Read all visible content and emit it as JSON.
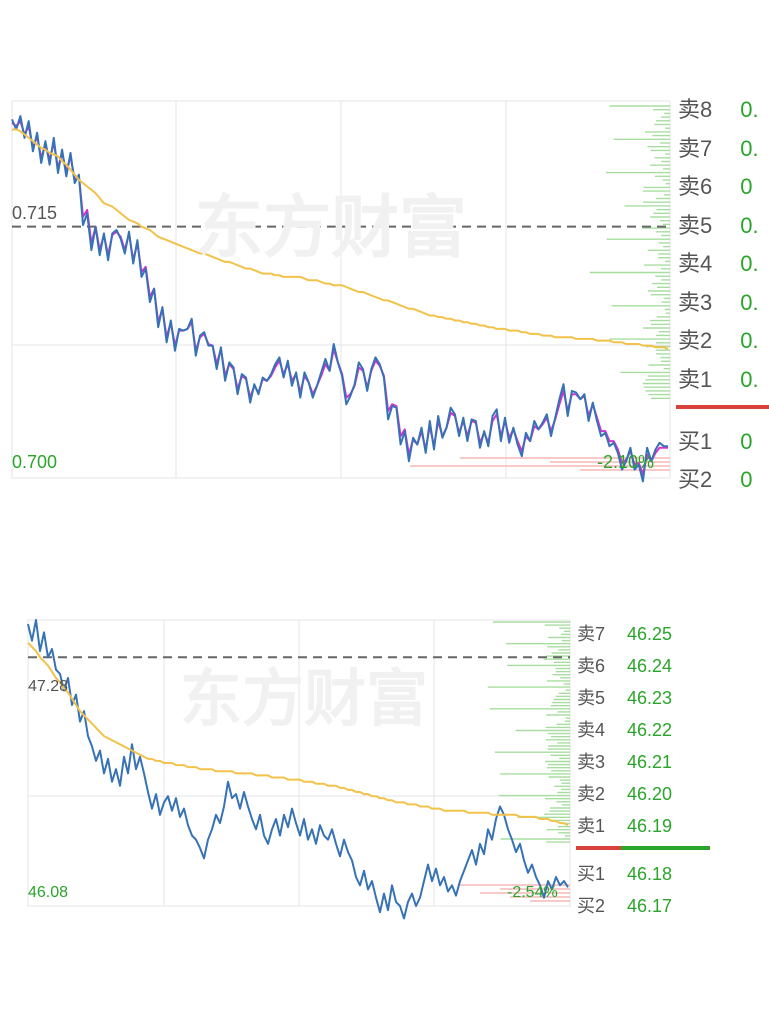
{
  "watermark": "东方财富",
  "colors": {
    "price": "#3672b5",
    "avg": "#f2c24a",
    "ma": "#d730d2",
    "grid": "#e4e4e4",
    "ref": "#666666",
    "down": "#2aa52a",
    "up": "#d9423c",
    "vol_sell": "#a8dda0",
    "vol_buy": "#f3b9b6"
  },
  "chart_data": [
    {
      "type": "line",
      "series": [
        {
          "values": [
            0.7214,
            0.7208,
            0.7216,
            0.7203,
            0.7213,
            0.7195,
            0.7206,
            0.7188,
            0.7201,
            0.7187,
            0.7203,
            0.7182,
            0.7196,
            0.718,
            0.7194,
            0.7176,
            0.7181,
            0.7151,
            0.7158,
            0.7136,
            0.715,
            0.7133,
            0.7146,
            0.713,
            0.7146,
            0.7148,
            0.7143,
            0.7134,
            0.7147,
            0.7128,
            0.7142,
            0.712,
            0.7125,
            0.7105,
            0.7113,
            0.709,
            0.7102,
            0.7081,
            0.7094,
            0.7076,
            0.7089,
            0.7088,
            0.7089,
            0.7095,
            0.7073,
            0.7085,
            0.7087,
            0.7079,
            0.7079,
            0.7065,
            0.7078,
            0.7058,
            0.7069,
            0.7066,
            0.705,
            0.7062,
            0.706,
            0.7045,
            0.7056,
            0.705,
            0.706,
            0.7058,
            0.7062,
            0.7068,
            0.7072,
            0.706,
            0.707,
            0.7055,
            0.7063,
            0.7048,
            0.7063,
            0.7057,
            0.7048,
            0.7055,
            0.7063,
            0.7071,
            0.7064,
            0.708,
            0.7069,
            0.7061,
            0.7044,
            0.7049,
            0.7056,
            0.7069,
            0.7065,
            0.7052,
            0.7065,
            0.7072,
            0.7068,
            0.706,
            0.7035,
            0.7043,
            0.7042,
            0.702,
            0.7028,
            0.701,
            0.7024,
            0.702,
            0.703,
            0.7015,
            0.7034,
            0.7017,
            0.7037,
            0.7024,
            0.703,
            0.7042,
            0.7038,
            0.7025,
            0.7036,
            0.7022,
            0.7035,
            0.7034,
            0.7018,
            0.7028,
            0.7019,
            0.7037,
            0.7041,
            0.7022,
            0.7036,
            0.7021,
            0.703,
            0.702,
            0.7013,
            0.7027,
            0.7022,
            0.7034,
            0.7029,
            0.7033,
            0.7038,
            0.7025,
            0.7036,
            0.7047,
            0.7056,
            0.7037,
            0.7052,
            0.7051,
            0.7047,
            0.705,
            0.7034,
            0.7045,
            0.7034,
            0.7025,
            0.7027,
            0.7019,
            0.7021,
            0.7015,
            0.7005,
            0.701,
            0.7018,
            0.7005,
            0.7008,
            0.6998,
            0.7018,
            0.701,
            0.7017,
            0.7021,
            0.7019,
            0.7019
          ]
        },
        {
          "values": [
            0.7208,
            0.7208,
            0.7207,
            0.7205,
            0.7203,
            0.7201,
            0.7199,
            0.7197,
            0.7196,
            0.7194,
            0.7193,
            0.7192,
            0.7189,
            0.7187,
            0.7184,
            0.7181,
            0.7178,
            0.7176,
            0.7174,
            0.7172,
            0.717,
            0.7167,
            0.7164,
            0.7163,
            0.7162,
            0.716,
            0.7158,
            0.7156,
            0.7154,
            0.7153,
            0.7152,
            0.715,
            0.7149,
            0.7148,
            0.7146,
            0.7144,
            0.7143,
            0.7142,
            0.7141,
            0.714,
            0.7139,
            0.7138,
            0.7137,
            0.7136,
            0.7135,
            0.7134,
            0.7134,
            0.7133,
            0.7132,
            0.7131,
            0.713,
            0.7129,
            0.7129,
            0.7128,
            0.7127,
            0.7126,
            0.7125,
            0.7125,
            0.7124,
            0.7123,
            0.7122,
            0.7122,
            0.7122,
            0.7121,
            0.7121,
            0.712,
            0.712,
            0.712,
            0.712,
            0.712,
            0.7119,
            0.7118,
            0.7118,
            0.7118,
            0.7117,
            0.7116,
            0.7116,
            0.7115,
            0.7115,
            0.7115,
            0.7114,
            0.7113,
            0.7112,
            0.7111,
            0.7111,
            0.711,
            0.7109,
            0.7108,
            0.7107,
            0.7106,
            0.7106,
            0.7105,
            0.7104,
            0.7103,
            0.7102,
            0.7101,
            0.7101,
            0.71,
            0.7099,
            0.7098,
            0.7097,
            0.7097,
            0.7096,
            0.7096,
            0.7095,
            0.7095,
            0.7094,
            0.7094,
            0.7093,
            0.7093,
            0.7092,
            0.7092,
            0.7091,
            0.7091,
            0.709,
            0.709,
            0.7089,
            0.7089,
            0.7089,
            0.7088,
            0.7088,
            0.7088,
            0.7087,
            0.7087,
            0.7086,
            0.7086,
            0.7086,
            0.7085,
            0.7085,
            0.7085,
            0.7084,
            0.7084,
            0.7084,
            0.7084,
            0.7084,
            0.7083,
            0.7083,
            0.7083,
            0.7083,
            0.7083,
            0.7082,
            0.7082,
            0.7082,
            0.7082,
            0.7081,
            0.7081,
            0.7081,
            0.708,
            0.708,
            0.708,
            0.708,
            0.7079,
            0.7079,
            0.7079,
            0.7078,
            0.7078,
            0.7078,
            0.7077
          ]
        },
        {
          "values": [
            0.7212,
            0.721,
            0.7213,
            0.7205,
            0.721,
            0.7197,
            0.7204,
            0.7191,
            0.7199,
            0.719,
            0.72,
            0.7185,
            0.7194,
            0.7183,
            0.7192,
            0.7178,
            0.718,
            0.7156,
            0.716,
            0.714,
            0.715,
            0.7136,
            0.7145,
            0.7133,
            0.7145,
            0.7147,
            0.7144,
            0.7136,
            0.7146,
            0.713,
            0.714,
            0.7123,
            0.7126,
            0.7108,
            0.7113,
            0.7093,
            0.7101,
            0.7084,
            0.7093,
            0.7079,
            0.7088,
            0.7088,
            0.7089,
            0.7093,
            0.7076,
            0.7084,
            0.7086,
            0.708,
            0.7079,
            0.7068,
            0.7077,
            0.7061,
            0.7068,
            0.7065,
            0.7053,
            0.7061,
            0.7059,
            0.7048,
            0.7055,
            0.7051,
            0.7059,
            0.7058,
            0.7061,
            0.7066,
            0.707,
            0.7062,
            0.7068,
            0.7058,
            0.7062,
            0.7051,
            0.7061,
            0.7057,
            0.705,
            0.7055,
            0.7061,
            0.7068,
            0.7064,
            0.7077,
            0.7069,
            0.7062,
            0.7048,
            0.705,
            0.7055,
            0.7066,
            0.7064,
            0.7054,
            0.7064,
            0.707,
            0.7067,
            0.7061,
            0.704,
            0.7044,
            0.7043,
            0.7025,
            0.7029,
            0.7014,
            0.7023,
            0.702,
            0.7028,
            0.7017,
            0.7031,
            0.7019,
            0.7034,
            0.7025,
            0.703,
            0.7039,
            0.7037,
            0.7027,
            0.7034,
            0.7025,
            0.7034,
            0.7033,
            0.7021,
            0.7027,
            0.7021,
            0.7034,
            0.7038,
            0.7025,
            0.7034,
            0.7024,
            0.7029,
            0.7022,
            0.7016,
            0.7025,
            0.7022,
            0.7031,
            0.7029,
            0.7032,
            0.7036,
            0.7028,
            0.7035,
            0.7044,
            0.7052,
            0.704,
            0.705,
            0.705,
            0.7047,
            0.7049,
            0.7037,
            0.7044,
            0.7036,
            0.7028,
            0.7028,
            0.7022,
            0.7022,
            0.7017,
            0.7009,
            0.7011,
            0.7016,
            0.7008,
            0.7009,
            0.7002,
            0.7014,
            0.701,
            0.7015,
            0.7018,
            0.7018,
            0.7018
          ]
        }
      ],
      "ylim": [
        0.7,
        0.7225
      ],
      "ref_price": "0.715",
      "ref_value": 0.715,
      "low_label": "0.700",
      "change_label": "-2.10%",
      "order_book": {
        "sell": [
          {
            "label": "卖8",
            "price": "0."
          },
          {
            "label": "卖7",
            "price": "0."
          },
          {
            "label": "卖6",
            "price": "0"
          },
          {
            "label": "卖5",
            "price": "0."
          },
          {
            "label": "卖4",
            "price": "0."
          },
          {
            "label": "卖3",
            "price": "0."
          },
          {
            "label": "卖2",
            "price": "0."
          },
          {
            "label": "卖1",
            "price": "0."
          }
        ],
        "buy": [
          {
            "label": "买1",
            "price": "0"
          },
          {
            "label": "买2",
            "price": "0"
          }
        ]
      }
    },
    {
      "type": "line",
      "series": [
        {
          "values": [
            47.44,
            47.36,
            47.46,
            47.31,
            47.4,
            47.28,
            47.32,
            47.22,
            47.2,
            47.12,
            47.18,
            47.05,
            47.1,
            46.97,
            47.02,
            46.9,
            46.85,
            46.78,
            46.83,
            46.72,
            46.79,
            46.68,
            46.74,
            46.66,
            46.8,
            46.72,
            46.86,
            46.74,
            46.8,
            46.72,
            46.63,
            46.55,
            46.62,
            46.52,
            46.58,
            46.61,
            46.54,
            46.6,
            46.51,
            46.55,
            46.47,
            46.42,
            46.4,
            46.36,
            46.31,
            46.4,
            46.45,
            46.52,
            46.48,
            46.56,
            46.68,
            46.6,
            46.62,
            46.55,
            46.63,
            46.56,
            46.5,
            46.45,
            46.52,
            46.42,
            46.38,
            46.45,
            46.5,
            46.42,
            46.52,
            46.46,
            46.55,
            46.48,
            46.42,
            46.5,
            46.4,
            46.45,
            46.38,
            46.47,
            46.42,
            46.4,
            46.45,
            46.38,
            46.32,
            46.4,
            46.34,
            46.3,
            46.22,
            46.18,
            46.25,
            46.16,
            46.2,
            46.12,
            46.05,
            46.14,
            46.06,
            46.18,
            46.1,
            46.08,
            46.02,
            46.1,
            46.14,
            46.08,
            46.12,
            46.2,
            46.28,
            46.2,
            46.26,
            46.18,
            46.22,
            46.15,
            46.18,
            46.13,
            46.2,
            46.25,
            46.3,
            46.35,
            46.28,
            46.38,
            46.33,
            46.45,
            46.4,
            46.5,
            46.56,
            46.52,
            46.45,
            46.4,
            46.34,
            46.38,
            46.3,
            46.24,
            46.28,
            46.22,
            46.18,
            46.12,
            46.2,
            46.16,
            46.22,
            46.18,
            46.2,
            46.17
          ]
        },
        {
          "values": [
            47.35,
            47.33,
            47.31,
            47.28,
            47.26,
            47.24,
            47.21,
            47.18,
            47.16,
            47.13,
            47.11,
            47.08,
            47.05,
            47.02,
            47.0,
            46.98,
            46.96,
            46.94,
            46.92,
            46.9,
            46.89,
            46.88,
            46.87,
            46.86,
            46.85,
            46.84,
            46.83,
            46.82,
            46.81,
            46.8,
            46.79,
            46.79,
            46.78,
            46.78,
            46.77,
            46.77,
            46.77,
            46.76,
            46.76,
            46.76,
            46.75,
            46.75,
            46.75,
            46.74,
            46.74,
            46.74,
            46.74,
            46.73,
            46.73,
            46.73,
            46.73,
            46.73,
            46.72,
            46.72,
            46.72,
            46.72,
            46.72,
            46.71,
            46.71,
            46.71,
            46.71,
            46.7,
            46.7,
            46.7,
            46.7,
            46.69,
            46.69,
            46.69,
            46.69,
            46.68,
            46.68,
            46.68,
            46.67,
            46.67,
            46.67,
            46.66,
            46.66,
            46.66,
            46.65,
            46.65,
            46.64,
            46.64,
            46.63,
            46.63,
            46.62,
            46.62,
            46.61,
            46.61,
            46.6,
            46.6,
            46.59,
            46.59,
            46.58,
            46.58,
            46.58,
            46.57,
            46.57,
            46.57,
            46.56,
            46.56,
            46.56,
            46.55,
            46.55,
            46.55,
            46.54,
            46.54,
            46.54,
            46.54,
            46.54,
            46.54,
            46.53,
            46.53,
            46.53,
            46.53,
            46.53,
            46.53,
            46.52,
            46.52,
            46.52,
            46.52,
            46.52,
            46.52,
            46.52,
            46.51,
            46.51,
            46.51,
            46.51,
            46.51,
            46.5,
            46.5,
            46.5,
            46.49,
            46.49,
            46.48,
            46.48,
            46.47
          ]
        }
      ],
      "ylim": [
        46.08,
        47.46
      ],
      "ref_price": "47.28",
      "ref_value": 47.28,
      "low_label": "46.08",
      "change_label": "-2.54%",
      "order_book": {
        "sell": [
          {
            "label": "卖7",
            "price": "46.25"
          },
          {
            "label": "卖6",
            "price": "46.24"
          },
          {
            "label": "卖5",
            "price": "46.23"
          },
          {
            "label": "卖4",
            "price": "46.22"
          },
          {
            "label": "卖3",
            "price": "46.21"
          },
          {
            "label": "卖2",
            "price": "46.20"
          },
          {
            "label": "卖1",
            "price": "46.19"
          }
        ],
        "buy": [
          {
            "label": "买1",
            "price": "46.18"
          },
          {
            "label": "买2",
            "price": "46.17"
          }
        ]
      }
    }
  ]
}
